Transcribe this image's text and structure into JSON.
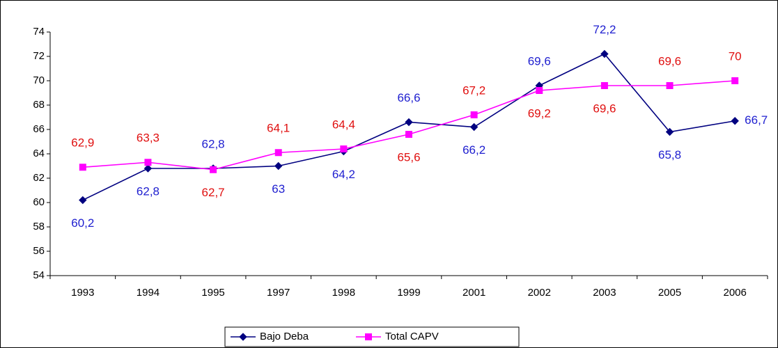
{
  "chart_data": {
    "type": "line",
    "categories": [
      "1993",
      "1994",
      "1995",
      "1997",
      "1998",
      "1999",
      "2001",
      "2002",
      "2003",
      "2005",
      "2006"
    ],
    "series": [
      {
        "name": "Bajo Deba",
        "color": "#000080",
        "label_color": "#2020d0",
        "marker": "diamond",
        "values": [
          60.2,
          62.8,
          62.8,
          63,
          64.2,
          66.6,
          66.2,
          69.6,
          72.2,
          65.8,
          66.7
        ],
        "value_labels": [
          "60,2",
          "62,8",
          "62,8",
          "63",
          "64,2",
          "66,6",
          "66,2",
          "69,6",
          "72,2",
          "65,8",
          "66,7"
        ]
      },
      {
        "name": "Total CAPV",
        "color": "#ff00ff",
        "label_color": "#e01010",
        "marker": "square",
        "values": [
          62.9,
          63.3,
          62.7,
          64.1,
          64.4,
          65.6,
          67.2,
          69.2,
          69.6,
          69.6,
          70
        ],
        "value_labels": [
          "62,9",
          "63,3",
          "62,7",
          "64,1",
          "64,4",
          "65,6",
          "67,2",
          "69,2",
          "69,6",
          "69,6",
          "70"
        ]
      }
    ],
    "ylim": [
      54,
      74
    ],
    "yticks": [
      54,
      56,
      58,
      60,
      62,
      64,
      66,
      68,
      70,
      72,
      74
    ],
    "legend": "bottom"
  }
}
